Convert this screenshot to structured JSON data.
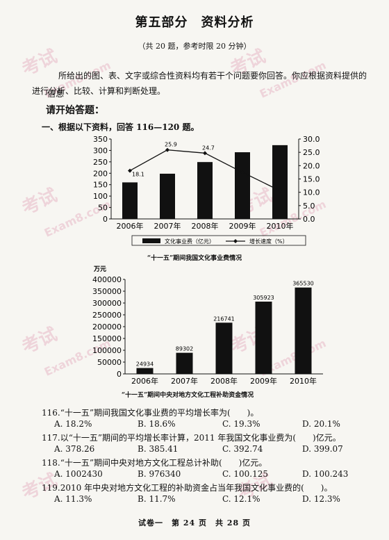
{
  "header": {
    "title": "第五部分　资料分析",
    "subtitle": "（共 20 题，参考时限 20 分钟）"
  },
  "intro": {
    "line1": "所给出的图、表、文字或综合性资料均有若干个问题要你回答。你应根据资料提供的信息",
    "line2": "进行分析、比较、计算和判断处理。"
  },
  "start_label": "请开始答题：",
  "section": {
    "label": "一、根据以下资料，回答 116—120 题。"
  },
  "watermark": {
    "text1": "考试",
    "text2": "Exam8.com",
    "color": "#e8b9c8"
  },
  "chart_data": [
    {
      "type": "bar",
      "title": "“十一五”期间我国文化事业费情况",
      "categories": [
        "2006年",
        "2007年",
        "2008年",
        "2009年",
        "2010年"
      ],
      "series": [
        {
          "name": "文化事业费（亿元）",
          "type": "bar",
          "values": [
            160,
            198,
            249,
            292,
            323
          ]
        },
        {
          "name": "增长速度（%）",
          "type": "line",
          "axis": "right",
          "values": [
            18.1,
            25.9,
            24.7,
            17.5,
            10.6
          ]
        }
      ],
      "data_labels": [
        "18.1",
        "25.9",
        "24.7"
      ],
      "yleft_ticks": [
        "0",
        "50",
        "100",
        "150",
        "200",
        "250",
        "300",
        "350"
      ],
      "yright_ticks": [
        "0.0",
        "5.0",
        "10.0",
        "15.0",
        "20.0",
        "25.0",
        "30.0"
      ],
      "ylim_left": [
        0,
        350
      ],
      "ylim_right": [
        0,
        30
      ],
      "legend_position": "bottom"
    },
    {
      "type": "bar",
      "title": "“十一五”期间中央对地方文化工程补助资金情况",
      "ylabel": "万元",
      "categories": [
        "2006年",
        "2007年",
        "2008年",
        "2009年",
        "2010年"
      ],
      "values": [
        24934,
        89302,
        216741,
        305923,
        365530
      ],
      "data_labels": [
        "24934",
        "89302",
        "216741",
        "305923",
        "365530"
      ],
      "y_ticks": [
        "0",
        "50000",
        "100000",
        "150000",
        "200000",
        "250000",
        "300000",
        "350000",
        "400000"
      ],
      "ylim": [
        0,
        400000
      ]
    }
  ],
  "questions": [
    {
      "stem": "116.“十一五”期间我国文化事业费的平均增长率为(　　)。",
      "options": [
        "A. 18.2%",
        "B. 18.6%",
        "C. 19.3%",
        "D. 20.1%"
      ]
    },
    {
      "stem": "117.以“十一五”期间的平均增长率计算，2011 年我国文化事业费为(　　)亿元。",
      "options": [
        "A. 378.26",
        "B. 385.41",
        "C. 392.74",
        "D. 399.07"
      ]
    },
    {
      "stem": "118.“十一五”期间中央对地方文化工程总计补助(　　)亿元。",
      "options": [
        "A. 1002430",
        "B. 976340",
        "C. 100.125",
        "D. 100.243"
      ]
    },
    {
      "stem": "119.2010 年中央对地方文化工程的补助资金占当年我国文化事业费的(　　)。",
      "options": [
        "A. 11.3%",
        "B. 11.7%",
        "C. 12.1%",
        "D. 12.3%"
      ]
    }
  ],
  "footer": "试卷一　第 24 页　共 28 页"
}
